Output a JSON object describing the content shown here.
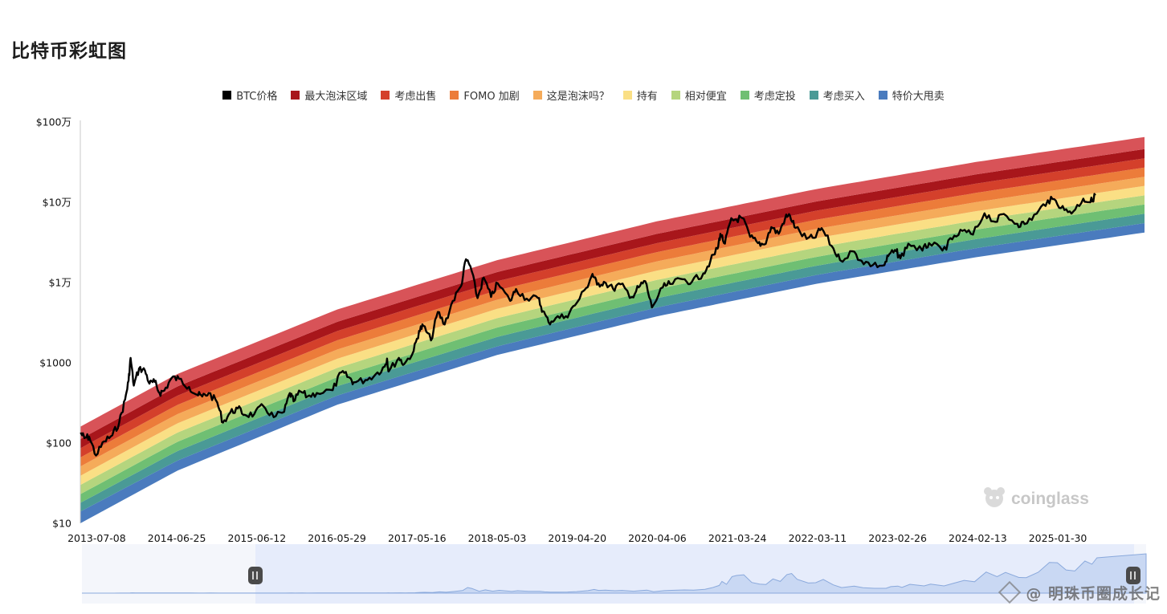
{
  "page": {
    "title": "比特币彩虹图"
  },
  "legend": [
    {
      "label": "BTC价格",
      "color": "#000000"
    },
    {
      "label": "最大泡沫区域",
      "color": "#a8161b"
    },
    {
      "label": "考虑出售",
      "color": "#d4402b"
    },
    {
      "label": "FOMO 加剧",
      "color": "#ec7c3a"
    },
    {
      "label": "这是泡沫吗？",
      "color": "#f5ab5a"
    },
    {
      "label": "持有",
      "color": "#fadf85"
    },
    {
      "label": "相对便宜",
      "color": "#b5d57e"
    },
    {
      "label": "考虑定投",
      "color": "#6fbf73"
    },
    {
      "label": "考虑买入",
      "color": "#4a9a96"
    },
    {
      "label": "特价大甩卖",
      "color": "#4a7bbe"
    }
  ],
  "watermark": {
    "logo_text": "coinglass",
    "footer_text": "@ 明珠币圈成长记"
  },
  "chart_data": {
    "type": "area",
    "y_scale": "log",
    "ylim": [
      10,
      1000000
    ],
    "y_ticks": [
      {
        "value": 10,
        "label": "$10"
      },
      {
        "value": 100,
        "label": "$100"
      },
      {
        "value": 1000,
        "label": "$1000"
      },
      {
        "value": 10000,
        "label": "$1万"
      },
      {
        "value": 100000,
        "label": "$10万"
      },
      {
        "value": 1000000,
        "label": "$100万"
      }
    ],
    "xlim": [
      "2013-04-27",
      "2026-02-15"
    ],
    "x_ticks": [
      "2013-07-08",
      "2014-06-25",
      "2015-06-12",
      "2016-05-29",
      "2017-05-16",
      "2018-05-03",
      "2019-04-20",
      "2020-04-06",
      "2021-03-24",
      "2022-03-11",
      "2023-02-26",
      "2024-02-13",
      "2025-01-30"
    ],
    "band_boundaries": {
      "dates": [
        "2013-04-27",
        "2014-06-25",
        "2016-05-29",
        "2018-05-03",
        "2020-04-06",
        "2022-03-11",
        "2024-02-13",
        "2026-02-15"
      ],
      "series": [
        {
          "name": "",
          "values": [
            10,
            45,
            300,
            1250,
            3800,
            9700,
            20800,
            42000
          ]
        },
        {
          "name": "",
          "values": [
            14,
            60,
            390,
            1600,
            4900,
            12500,
            27000,
            55000
          ]
        },
        {
          "name": "",
          "values": [
            18,
            79,
            510,
            2100,
            6400,
            16300,
            35000,
            72000
          ]
        },
        {
          "name": "",
          "values": [
            23,
            103,
            660,
            2750,
            8300,
            21000,
            46000,
            94000
          ]
        },
        {
          "name": "",
          "values": [
            30,
            134,
            860,
            3600,
            10800,
            27500,
            60000,
            122000
          ]
        },
        {
          "name": "",
          "values": [
            39,
            175,
            1120,
            4700,
            14100,
            36000,
            78000,
            160000
          ]
        },
        {
          "name": "",
          "values": [
            51,
            228,
            1460,
            6100,
            18400,
            47000,
            101000,
            208000
          ]
        },
        {
          "name": "",
          "values": [
            66,
            297,
            1900,
            8000,
            24000,
            61000,
            132000,
            271000
          ]
        },
        {
          "name": "",
          "values": [
            86,
            387,
            2480,
            10400,
            31000,
            79000,
            172000,
            353000
          ]
        },
        {
          "name": "",
          "values": [
            112,
            504,
            3230,
            13500,
            40500,
            103000,
            224000,
            460000
          ]
        },
        {
          "name": "",
          "values": [
            160,
            720,
            4600,
            19000,
            58000,
            147000,
            320000,
            650000
          ]
        }
      ]
    },
    "btc_price": {
      "name": "BTC价格",
      "points": [
        [
          "2013-04-28",
          135
        ],
        [
          "2013-05-15",
          115
        ],
        [
          "2013-06-05",
          120
        ],
        [
          "2013-07-05",
          70
        ],
        [
          "2013-08-10",
          105
        ],
        [
          "2013-09-15",
          125
        ],
        [
          "2013-10-15",
          180
        ],
        [
          "2013-11-10",
          350
        ],
        [
          "2013-11-25",
          600
        ],
        [
          "2013-12-04",
          1150
        ],
        [
          "2013-12-18",
          520
        ],
        [
          "2014-01-10",
          850
        ],
        [
          "2014-02-05",
          800
        ],
        [
          "2014-02-25",
          550
        ],
        [
          "2014-03-20",
          580
        ],
        [
          "2014-04-10",
          420
        ],
        [
          "2014-05-01",
          450
        ],
        [
          "2014-06-03",
          650
        ],
        [
          "2014-07-05",
          630
        ],
        [
          "2014-08-18",
          500
        ],
        [
          "2014-09-22",
          400
        ],
        [
          "2014-10-15",
          380
        ],
        [
          "2014-11-12",
          420
        ],
        [
          "2014-12-20",
          320
        ],
        [
          "2015-01-14",
          180
        ],
        [
          "2015-02-15",
          240
        ],
        [
          "2015-03-20",
          270
        ],
        [
          "2015-04-20",
          225
        ],
        [
          "2015-06-01",
          230
        ],
        [
          "2015-07-10",
          290
        ],
        [
          "2015-08-25",
          210
        ],
        [
          "2015-10-10",
          245
        ],
        [
          "2015-11-04",
          420
        ],
        [
          "2015-11-20",
          330
        ],
        [
          "2015-12-20",
          440
        ],
        [
          "2016-01-20",
          380
        ],
        [
          "2016-03-01",
          420
        ],
        [
          "2016-05-10",
          455
        ],
        [
          "2016-06-17",
          760
        ],
        [
          "2016-07-20",
          660
        ],
        [
          "2016-08-10",
          570
        ],
        [
          "2016-10-01",
          610
        ],
        [
          "2016-11-15",
          720
        ],
        [
          "2016-12-25",
          900
        ],
        [
          "2017-01-04",
          1130
        ],
        [
          "2017-01-11",
          780
        ],
        [
          "2017-02-25",
          1150
        ],
        [
          "2017-03-20",
          960
        ],
        [
          "2017-05-01",
          1400
        ],
        [
          "2017-05-25",
          2500
        ],
        [
          "2017-06-12",
          2900
        ],
        [
          "2017-07-16",
          1900
        ],
        [
          "2017-08-15",
          4300
        ],
        [
          "2017-09-14",
          3000
        ],
        [
          "2017-10-20",
          5900
        ],
        [
          "2017-11-25",
          9000
        ],
        [
          "2017-12-17",
          19500
        ],
        [
          "2018-01-05",
          16000
        ],
        [
          "2018-02-06",
          6400
        ],
        [
          "2018-03-05",
          11500
        ],
        [
          "2018-04-06",
          6600
        ],
        [
          "2018-05-05",
          9800
        ],
        [
          "2018-06-29",
          5900
        ],
        [
          "2018-07-25",
          8300
        ],
        [
          "2018-09-10",
          6300
        ],
        [
          "2018-10-30",
          6400
        ],
        [
          "2018-11-20",
          4400
        ],
        [
          "2018-12-15",
          3200
        ],
        [
          "2019-01-15",
          3600
        ],
        [
          "2019-03-01",
          3800
        ],
        [
          "2019-04-10",
          5200
        ],
        [
          "2019-05-30",
          8600
        ],
        [
          "2019-06-26",
          12800
        ],
        [
          "2019-07-16",
          9400
        ],
        [
          "2019-08-15",
          10200
        ],
        [
          "2019-09-25",
          8300
        ],
        [
          "2019-10-26",
          9500
        ],
        [
          "2019-12-17",
          6600
        ],
        [
          "2020-01-15",
          8700
        ],
        [
          "2020-02-13",
          10400
        ],
        [
          "2020-03-13",
          4900
        ],
        [
          "2020-04-30",
          8700
        ],
        [
          "2020-06-01",
          9600
        ],
        [
          "2020-07-27",
          11000
        ],
        [
          "2020-09-05",
          10200
        ],
        [
          "2020-10-25",
          13000
        ],
        [
          "2020-11-25",
          18500
        ],
        [
          "2020-12-27",
          26500
        ],
        [
          "2021-01-08",
          40500
        ],
        [
          "2021-01-28",
          30500
        ],
        [
          "2021-02-21",
          57000
        ],
        [
          "2021-03-13",
          61000
        ],
        [
          "2021-04-14",
          63500
        ],
        [
          "2021-05-19",
          37000
        ],
        [
          "2021-06-22",
          31000
        ],
        [
          "2021-07-20",
          29800
        ],
        [
          "2021-08-20",
          49000
        ],
        [
          "2021-09-21",
          40500
        ],
        [
          "2021-10-20",
          64000
        ],
        [
          "2021-11-10",
          68000
        ],
        [
          "2021-12-04",
          48000
        ],
        [
          "2022-01-22",
          35000
        ],
        [
          "2022-02-24",
          36000
        ],
        [
          "2022-03-29",
          47500
        ],
        [
          "2022-05-12",
          28500
        ],
        [
          "2022-06-18",
          19000
        ],
        [
          "2022-08-12",
          24500
        ],
        [
          "2022-09-20",
          18700
        ],
        [
          "2022-11-09",
          16500
        ],
        [
          "2022-12-30",
          16500
        ],
        [
          "2023-01-20",
          22500
        ],
        [
          "2023-02-20",
          24500
        ],
        [
          "2023-03-10",
          20000
        ],
        [
          "2023-04-14",
          30500
        ],
        [
          "2023-06-15",
          25000
        ],
        [
          "2023-07-14",
          31000
        ],
        [
          "2023-09-11",
          25000
        ],
        [
          "2023-10-24",
          34500
        ],
        [
          "2023-12-08",
          44000
        ],
        [
          "2024-01-23",
          39500
        ],
        [
          "2024-03-14",
          73000
        ],
        [
          "2024-05-01",
          57000
        ],
        [
          "2024-06-07",
          71500
        ],
        [
          "2024-08-05",
          54000
        ],
        [
          "2024-09-06",
          53500
        ],
        [
          "2024-10-29",
          72000
        ],
        [
          "2024-12-17",
          106000
        ],
        [
          "2025-01-21",
          105000
        ],
        [
          "2025-02-28",
          80000
        ],
        [
          "2025-04-08",
          76500
        ],
        [
          "2025-05-22",
          111000
        ],
        [
          "2025-06-22",
          100000
        ],
        [
          "2025-07-14",
          122000
        ]
      ]
    }
  }
}
